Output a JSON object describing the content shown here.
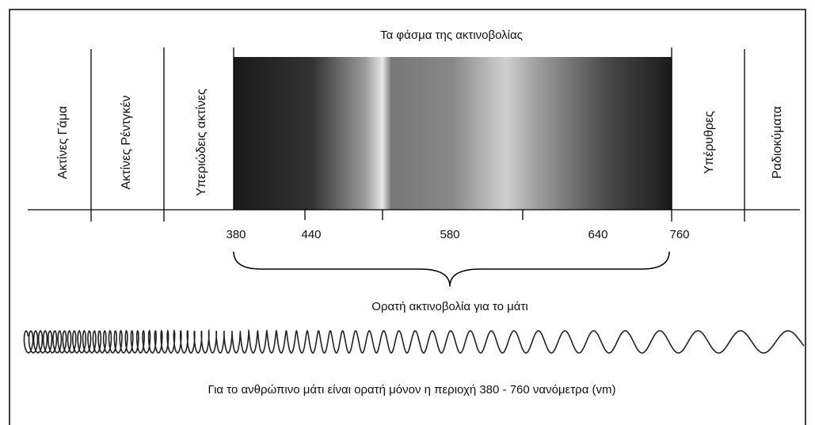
{
  "title": "Τα φάσμα της ακτινοβολίας",
  "bands": [
    "Ακτίνες Γάμα",
    "Ακτίνες Ρέντγκέν",
    "Υπεριώδεις ακτίνες",
    "Υπέρυθρες",
    "Ραδιοκύματα"
  ],
  "ticks": [
    380,
    440,
    580,
    640,
    760
  ],
  "visible_label": "Ορατή ακτινοβολία για το μάτι",
  "caption": "Για το ανθρώπινο μάτι είναι ορατή μόνον η περιοχή 380 - 760 νανόμετρα (vm)"
}
